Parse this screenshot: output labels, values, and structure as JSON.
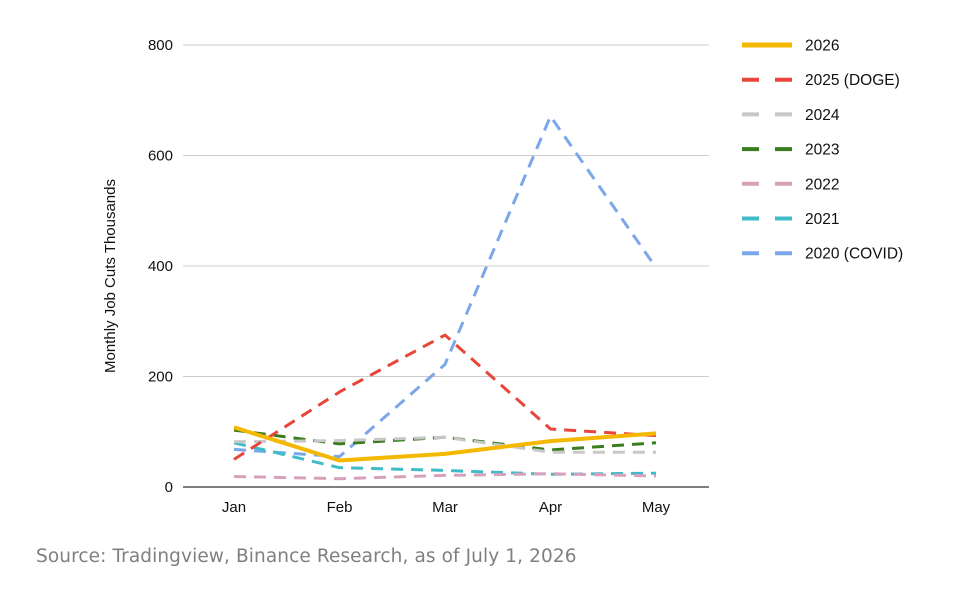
{
  "chart_data": {
    "type": "line",
    "ylabel": "Monthly Job Cuts Thousands",
    "ylim": [
      0,
      800
    ],
    "yticks": [
      "0",
      "200",
      "400",
      "600",
      "800"
    ],
    "ytick_values": [
      0,
      200,
      400,
      600,
      800
    ],
    "categories": [
      "Jan",
      "Feb",
      "Mar",
      "Apr",
      "May"
    ],
    "grid": true,
    "legend_position": "right",
    "series": [
      {
        "name": "2026",
        "color": "#f5b800",
        "dashed": false,
        "values": [
          108,
          48,
          60,
          83,
          97
        ]
      },
      {
        "name": "2025 (DOGE)",
        "color": "#e8463a",
        "dashed": true,
        "values": [
          50,
          172,
          275,
          105,
          93
        ]
      },
      {
        "name": "2024",
        "color": "#c8c8c8",
        "dashed": true,
        "values": [
          82,
          84,
          90,
          63,
          63
        ]
      },
      {
        "name": "2023",
        "color": "#3a7d1f",
        "dashed": true,
        "values": [
          103,
          78,
          90,
          67,
          80
        ]
      },
      {
        "name": "2022",
        "color": "#d7a1bc",
        "dashed": true,
        "values": [
          19,
          15,
          21,
          24,
          20
        ]
      },
      {
        "name": "2021",
        "color": "#3fbcc8",
        "dashed": true,
        "values": [
          80,
          35,
          30,
          23,
          25
        ]
      },
      {
        "name": "2020 (COVID)",
        "color": "#7aa7ea",
        "dashed": true,
        "values": [
          68,
          55,
          222,
          671,
          397
        ]
      }
    ]
  },
  "source": "Source: Tradingview, Binance Research, as of July 1, 2026"
}
